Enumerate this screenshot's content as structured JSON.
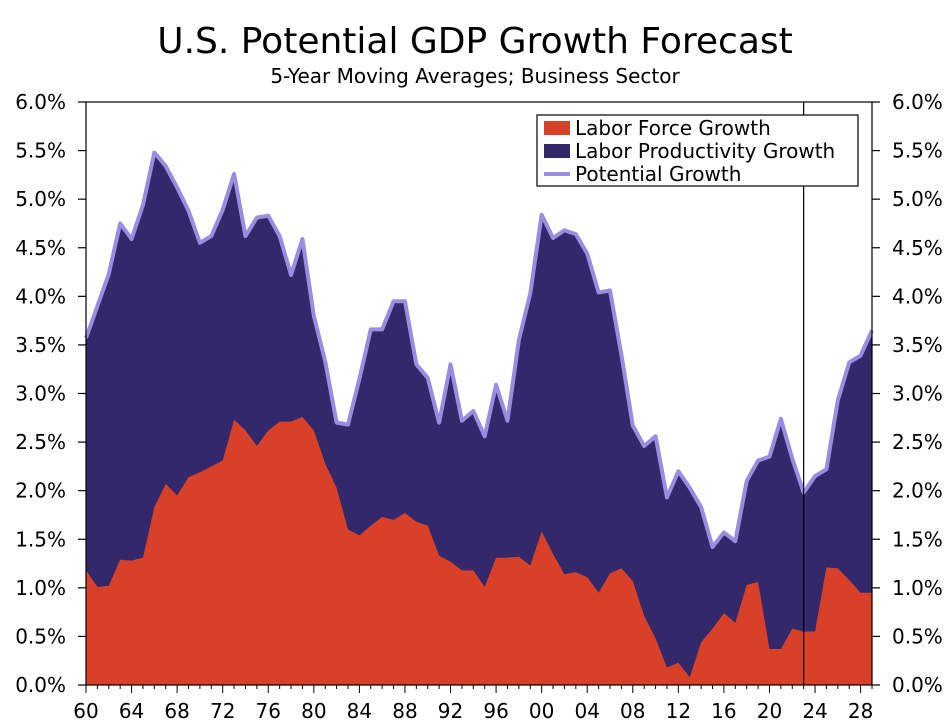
{
  "chart_data": {
    "type": "area",
    "title": "U.S. Potential GDP Growth Forecast",
    "subtitle": "5-Year Moving Averages; Business Sector",
    "xlabel": "",
    "ylabel": "",
    "x_range": [
      1960,
      2029
    ],
    "ylim": [
      0,
      6
    ],
    "y_ticks": [
      "0.0%",
      "0.5%",
      "1.0%",
      "1.5%",
      "2.0%",
      "2.5%",
      "3.0%",
      "3.5%",
      "4.0%",
      "4.5%",
      "5.0%",
      "5.5%",
      "6.0%"
    ],
    "x_ticks": [
      "60",
      "64",
      "68",
      "72",
      "76",
      "80",
      "84",
      "88",
      "92",
      "96",
      "00",
      "04",
      "08",
      "12",
      "16",
      "20",
      "24",
      "28"
    ],
    "forecast_line_year": 2023,
    "legend_position": "top-right",
    "grid": false,
    "colors": {
      "labor_force": "#d84128",
      "productivity": "#32286a",
      "potential": "#9a8ce0"
    },
    "legend": [
      "Labor Force Growth",
      "Labor Productivity Growth",
      "Potential Growth"
    ],
    "years": [
      1960,
      1961,
      1962,
      1963,
      1964,
      1965,
      1966,
      1967,
      1968,
      1969,
      1970,
      1971,
      1972,
      1973,
      1974,
      1975,
      1976,
      1977,
      1978,
      1979,
      1980,
      1981,
      1982,
      1983,
      1984,
      1985,
      1986,
      1987,
      1988,
      1989,
      1990,
      1991,
      1992,
      1993,
      1994,
      1995,
      1996,
      1997,
      1998,
      1999,
      2000,
      2001,
      2002,
      2003,
      2004,
      2005,
      2006,
      2007,
      2008,
      2009,
      2010,
      2011,
      2012,
      2013,
      2014,
      2015,
      2016,
      2017,
      2018,
      2019,
      2020,
      2021,
      2022,
      2023,
      2024,
      2025,
      2026,
      2027,
      2028,
      2029
    ],
    "series": [
      {
        "name": "Labor Force Growth",
        "values": [
          1.18,
          1.01,
          1.02,
          1.29,
          1.28,
          1.31,
          1.83,
          2.07,
          1.95,
          2.14,
          2.19,
          2.25,
          2.31,
          2.73,
          2.62,
          2.46,
          2.62,
          2.71,
          2.71,
          2.76,
          2.62,
          2.28,
          2.03,
          1.6,
          1.54,
          1.64,
          1.73,
          1.7,
          1.77,
          1.68,
          1.64,
          1.33,
          1.27,
          1.18,
          1.18,
          1.01,
          1.31,
          1.31,
          1.32,
          1.23,
          1.58,
          1.35,
          1.14,
          1.16,
          1.11,
          0.95,
          1.15,
          1.2,
          1.07,
          0.71,
          0.48,
          0.18,
          0.23,
          0.08,
          0.44,
          0.58,
          0.74,
          0.64,
          1.03,
          1.06,
          0.37,
          0.37,
          0.58,
          0.55,
          0.55,
          1.21,
          1.2,
          1.08,
          0.95,
          0.95
        ]
      },
      {
        "name": "Labor Productivity Growth",
        "values": [
          2.39,
          2.89,
          3.21,
          3.46,
          3.31,
          3.63,
          3.65,
          3.27,
          3.17,
          2.74,
          2.36,
          2.37,
          2.58,
          2.53,
          2.0,
          2.35,
          2.21,
          1.91,
          1.51,
          1.83,
          1.18,
          1.05,
          0.67,
          1.08,
          1.61,
          2.02,
          1.93,
          2.25,
          2.18,
          1.62,
          1.52,
          1.37,
          2.03,
          1.54,
          1.64,
          1.55,
          1.78,
          1.41,
          2.23,
          2.8,
          3.26,
          3.25,
          3.54,
          3.48,
          3.33,
          3.09,
          2.91,
          2.2,
          1.6,
          1.75,
          2.08,
          1.75,
          1.97,
          1.95,
          1.39,
          0.84,
          0.83,
          0.84,
          1.07,
          1.25,
          1.98,
          2.37,
          1.75,
          1.43,
          1.6,
          1.01,
          1.73,
          2.24,
          2.44,
          2.7
        ]
      },
      {
        "name": "Potential Growth",
        "values": [
          3.57,
          3.9,
          4.23,
          4.75,
          4.59,
          4.94,
          5.48,
          5.34,
          5.12,
          4.88,
          4.55,
          4.62,
          4.89,
          5.26,
          4.62,
          4.81,
          4.83,
          4.62,
          4.22,
          4.59,
          3.8,
          3.33,
          2.7,
          2.68,
          3.15,
          3.66,
          3.66,
          3.95,
          3.95,
          3.3,
          3.16,
          2.7,
          3.3,
          2.72,
          2.82,
          2.56,
          3.09,
          2.72,
          3.55,
          4.03,
          4.84,
          4.6,
          4.68,
          4.64,
          4.44,
          4.04,
          4.06,
          3.4,
          2.67,
          2.46,
          2.56,
          1.93,
          2.2,
          2.03,
          1.83,
          1.42,
          1.57,
          1.48,
          2.1,
          2.31,
          2.35,
          2.74,
          2.33,
          1.98,
          2.15,
          2.22,
          2.93,
          3.32,
          3.39,
          3.65
        ]
      }
    ]
  }
}
